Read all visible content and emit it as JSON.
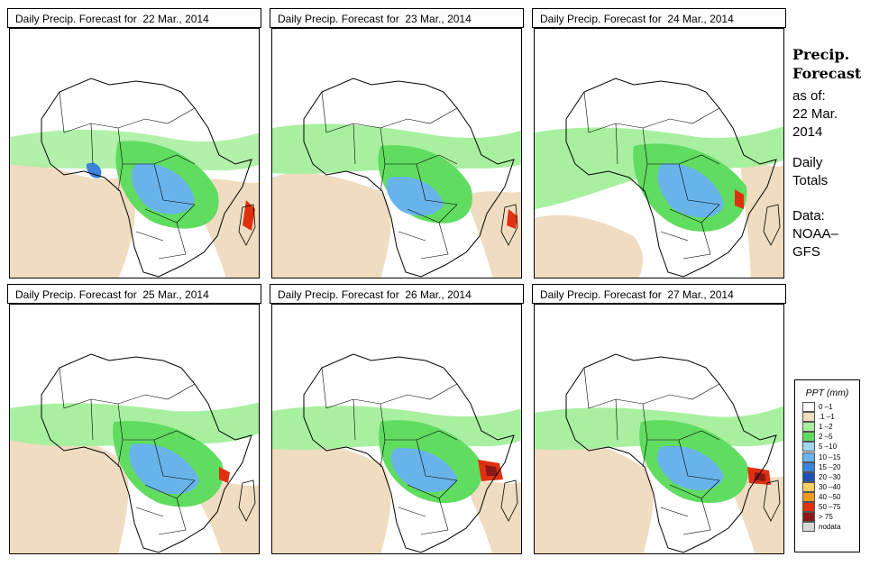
{
  "panels": [
    {
      "title": "Daily Precip. Forecast for  22 Mar., 2014"
    },
    {
      "title": "Daily Precip. Forecast for  23 Mar., 2014"
    },
    {
      "title": "Daily Precip. Forecast for  24 Mar., 2014"
    },
    {
      "title": "Daily Precip. Forecast for  25 Mar., 2014"
    },
    {
      "title": "Daily Precip. Forecast for  26 Mar., 2014"
    },
    {
      "title": "Daily Precip. Forecast for  27 Mar., 2014"
    }
  ],
  "sidebar": {
    "title_line1": "Precip.",
    "title_line2": "Forecast",
    "asof_line1": "as of:",
    "asof_line2": "22 Mar.",
    "asof_line3": "2014",
    "type_line1": "Daily",
    "type_line2": "Totals",
    "data_line1": "Data:",
    "data_line2": "NOAA–",
    "data_line3": "GFS"
  },
  "legend": {
    "title": "PPT (mm)",
    "items": [
      {
        "label": "0 –1",
        "color": "#ffffff"
      },
      {
        "label": ".1 –1",
        "color": "#f0dcc0"
      },
      {
        "label": "1 –2",
        "color": "#a8f0a0"
      },
      {
        "label": "2 –5",
        "color": "#60dc60"
      },
      {
        "label": "5 –10",
        "color": "#9ed8f0"
      },
      {
        "label": "10 –15",
        "color": "#68b4ea"
      },
      {
        "label": "15 –20",
        "color": "#3c84dc"
      },
      {
        "label": "20 –30",
        "color": "#2050b4"
      },
      {
        "label": "30 –40",
        "color": "#f5d060"
      },
      {
        "label": "40 –50",
        "color": "#f09a20"
      },
      {
        "label": "50 –75",
        "color": "#e03010"
      },
      {
        "label": "> 75",
        "color": "#8c1818"
      },
      {
        "label": "nodata",
        "color": "#d8d8d8"
      }
    ]
  }
}
